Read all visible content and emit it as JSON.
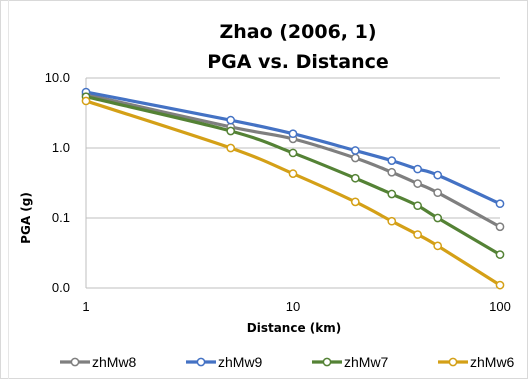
{
  "chart_data": {
    "type": "line",
    "title": "Zhao (2006, 1)",
    "subtitle": "PGA vs. Distance",
    "xlabel": "Distance (km)",
    "ylabel": "PGA (g)",
    "x_scale": "log",
    "y_scale": "log",
    "xlim": [
      1,
      100
    ],
    "ylim": [
      0.01,
      10
    ],
    "x_ticks": [
      1,
      10,
      100
    ],
    "x_tick_labels": [
      "1",
      "10",
      "100"
    ],
    "y_ticks": [
      10,
      1,
      0.1,
      0.01
    ],
    "y_tick_labels": [
      "10.0",
      "1.0",
      "0.1",
      "0.0"
    ],
    "grid": "horizontal",
    "legend": "bottom",
    "x": [
      1,
      5,
      10,
      20,
      30,
      40,
      50,
      100
    ],
    "series": [
      {
        "name": "zhMw8",
        "color": "#7f7f7f",
        "values": [
          5.8,
          2.0,
          1.35,
          0.72,
          0.45,
          0.31,
          0.23,
          0.075
        ]
      },
      {
        "name": "zhMw9",
        "color": "#4472c4",
        "values": [
          6.3,
          2.5,
          1.6,
          0.92,
          0.66,
          0.5,
          0.41,
          0.16
        ]
      },
      {
        "name": "zhMw7",
        "color": "#548235",
        "values": [
          5.4,
          1.75,
          0.85,
          0.37,
          0.22,
          0.15,
          0.1,
          0.03
        ]
      },
      {
        "name": "zhMw6",
        "color": "#d4a017",
        "values": [
          4.7,
          1.0,
          0.43,
          0.17,
          0.09,
          0.058,
          0.04,
          0.011
        ]
      }
    ]
  }
}
